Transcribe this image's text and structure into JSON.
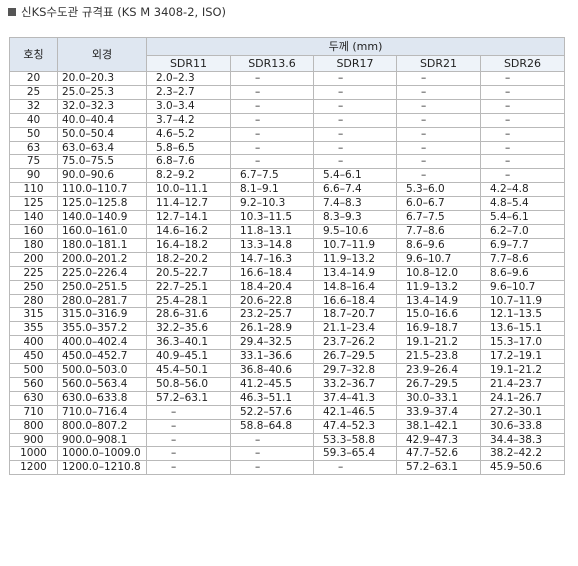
{
  "heading": "신KS수도관 규격표 (KS M 3408-2, ISO)",
  "table": {
    "header": {
      "nominal": "호칭",
      "od": "외경",
      "thickness": "두께 (mm)",
      "sdr": [
        "SDR11",
        "SDR13.6",
        "SDR17",
        "SDR21",
        "SDR26"
      ]
    },
    "rows": [
      [
        "20",
        "20.0–20.3",
        "2.0–2.3",
        "–",
        "–",
        "–",
        "–"
      ],
      [
        "25",
        "25.0–25.3",
        "2.3–2.7",
        "–",
        "–",
        "–",
        "–"
      ],
      [
        "32",
        "32.0–32.3",
        "3.0–3.4",
        "–",
        "–",
        "–",
        "–"
      ],
      [
        "40",
        "40.0–40.4",
        "3.7–4.2",
        "–",
        "–",
        "–",
        "–"
      ],
      [
        "50",
        "50.0–50.4",
        "4.6–5.2",
        "–",
        "–",
        "–",
        "–"
      ],
      [
        "63",
        "63.0–63.4",
        "5.8–6.5",
        "–",
        "–",
        "–",
        "–"
      ],
      [
        "75",
        "75.0–75.5",
        "6.8–7.6",
        "–",
        "–",
        "–",
        "–"
      ],
      [
        "90",
        "90.0–90.6",
        "8.2–9.2",
        "6.7–7.5",
        "5.4–6.1",
        "–",
        "–"
      ],
      [
        "110",
        "110.0–110.7",
        "10.0–11.1",
        "8.1–9.1",
        "6.6–7.4",
        "5.3–6.0",
        "4.2–4.8"
      ],
      [
        "125",
        "125.0–125.8",
        "11.4–12.7",
        "9.2–10.3",
        "7.4–8.3",
        "6.0–6.7",
        "4.8–5.4"
      ],
      [
        "140",
        "140.0–140.9",
        "12.7–14.1",
        "10.3–11.5",
        "8.3–9.3",
        "6.7–7.5",
        "5.4–6.1"
      ],
      [
        "160",
        "160.0–161.0",
        "14.6–16.2",
        "11.8–13.1",
        "9.5–10.6",
        "7.7–8.6",
        "6.2–7.0"
      ],
      [
        "180",
        "180.0–181.1",
        "16.4–18.2",
        "13.3–14.8",
        "10.7–11.9",
        "8.6–9.6",
        "6.9–7.7"
      ],
      [
        "200",
        "200.0–201.2",
        "18.2–20.2",
        "14.7–16.3",
        "11.9–13.2",
        "9.6–10.7",
        "7.7–8.6"
      ],
      [
        "225",
        "225.0–226.4",
        "20.5–22.7",
        "16.6–18.4",
        "13.4–14.9",
        "10.8–12.0",
        "8.6–9.6"
      ],
      [
        "250",
        "250.0–251.5",
        "22.7–25.1",
        "18.4–20.4",
        "14.8–16.4",
        "11.9–13.2",
        "9.6–10.7"
      ],
      [
        "280",
        "280.0–281.7",
        "25.4–28.1",
        "20.6–22.8",
        "16.6–18.4",
        "13.4–14.9",
        "10.7–11.9"
      ],
      [
        "315",
        "315.0–316.9",
        "28.6–31.6",
        "23.2–25.7",
        "18.7–20.7",
        "15.0–16.6",
        "12.1–13.5"
      ],
      [
        "355",
        "355.0–357.2",
        "32.2–35.6",
        "26.1–28.9",
        "21.1–23.4",
        "16.9–18.7",
        "13.6–15.1"
      ],
      [
        "400",
        "400.0–402.4",
        "36.3–40.1",
        "29.4–32.5",
        "23.7–26.2",
        "19.1–21.2",
        "15.3–17.0"
      ],
      [
        "450",
        "450.0–452.7",
        "40.9–45.1",
        "33.1–36.6",
        "26.7–29.5",
        "21.5–23.8",
        "17.2–19.1"
      ],
      [
        "500",
        "500.0–503.0",
        "45.4–50.1",
        "36.8–40.6",
        "29.7–32.8",
        "23.9–26.4",
        "19.1–21.2"
      ],
      [
        "560",
        "560.0–563.4",
        "50.8–56.0",
        "41.2–45.5",
        "33.2–36.7",
        "26.7–29.5",
        "21.4–23.7"
      ],
      [
        "630",
        "630.0–633.8",
        "57.2–63.1",
        "46.3–51.1",
        "37.4–41.3",
        "30.0–33.1",
        "24.1–26.7"
      ],
      [
        "710",
        "710.0–716.4",
        "–",
        "52.2–57.6",
        "42.1–46.5",
        "33.9–37.4",
        "27.2–30.1"
      ],
      [
        "800",
        "800.0–807.2",
        "–",
        "58.8–64.8",
        "47.4–52.3",
        "38.1–42.1",
        "30.6–33.8"
      ],
      [
        "900",
        "900.0–908.1",
        "–",
        "–",
        "53.3–58.8",
        "42.9–47.3",
        "34.4–38.3"
      ],
      [
        "1000",
        "1000.0–1009.0",
        "–",
        "–",
        "59.3–65.4",
        "47.7–52.6",
        "38.2–42.2"
      ],
      [
        "1200",
        "1200.0–1210.8",
        "–",
        "–",
        "–",
        "57.2–63.1",
        "45.9–50.6"
      ]
    ]
  }
}
